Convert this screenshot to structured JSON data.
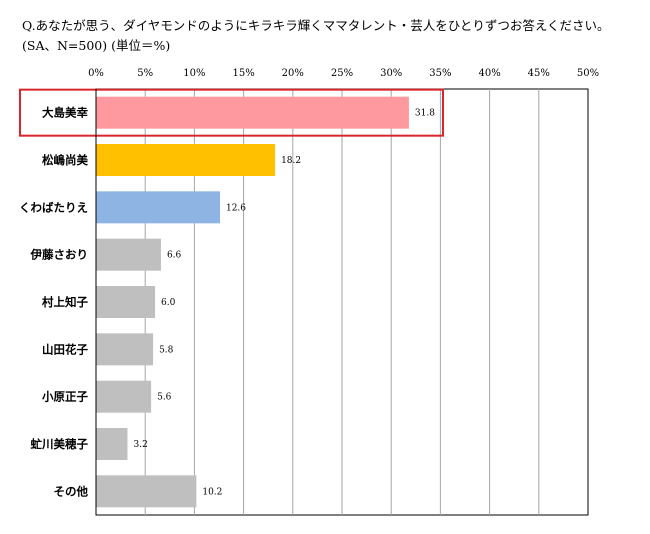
{
  "question": {
    "line1": "Q.あなたが思う、ダイヤモンドのようにキラキラ輝くママタレント・芸人をひとりずつお答えください。",
    "line2": "(SA、N=500) (単位＝%)"
  },
  "chart_data": {
    "type": "bar",
    "orientation": "horizontal",
    "categories": [
      "大島美幸",
      "松嶋尚美",
      "くわばたりえ",
      "伊藤さおり",
      "村上知子",
      "山田花子",
      "小原正子",
      "虻川美穂子",
      "その他"
    ],
    "values": [
      31.8,
      18.2,
      12.6,
      6.6,
      6.0,
      5.8,
      5.6,
      3.2,
      10.2
    ],
    "data_labels": [
      "31.8",
      "18.2",
      "12.6",
      "6.6",
      "6.0",
      "5.8",
      "5.6",
      "3.2",
      "10.2"
    ],
    "xlim": [
      0,
      50
    ],
    "xticks": [
      0,
      5,
      10,
      15,
      20,
      25,
      30,
      35,
      40,
      45,
      50
    ],
    "xtick_labels": [
      "0%",
      "5%",
      "10%",
      "15%",
      "20%",
      "25%",
      "30%",
      "35%",
      "40%",
      "45%",
      "50%"
    ],
    "x_axis_position": "top",
    "grid": "vertical",
    "legend": "none",
    "bar_colors": [
      "#ff99a0",
      "#ffc000",
      "#8db4e2",
      "#bfbfbf",
      "#bfbfbf",
      "#bfbfbf",
      "#bfbfbf",
      "#bfbfbf",
      "#bfbfbf"
    ],
    "highlight": {
      "category": "大島美幸",
      "color": "#d9262c"
    }
  }
}
